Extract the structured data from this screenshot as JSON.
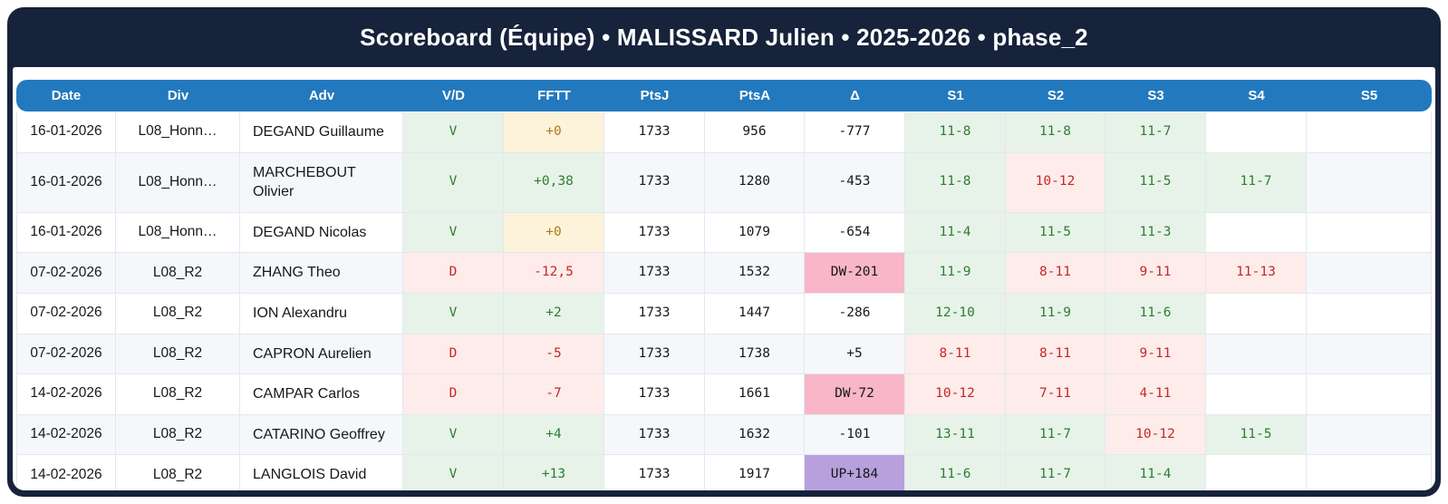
{
  "header": {
    "title": "Scoreboard (Équipe) • MALISSARD Julien • 2025-2026 • phase_2"
  },
  "colors": {
    "frame_navy": "#17223b",
    "table_header_blue": "#2379bd",
    "row_stripe": "#f5f7fb",
    "win_bg": "#e7f3e9",
    "win_text": "#2e7d32",
    "loss_bg": "#fdecea",
    "loss_text": "#c62828",
    "zero_bg": "#fdf2da",
    "zero_text": "#b07c10",
    "downgrade_bg": "#f9b6c8",
    "upgrade_bg": "#b8a0dc"
  },
  "table": {
    "columns": [
      {
        "key": "date",
        "label": "Date"
      },
      {
        "key": "div",
        "label": "Div"
      },
      {
        "key": "adv",
        "label": "Adv"
      },
      {
        "key": "vd",
        "label": "V/D"
      },
      {
        "key": "fftt",
        "label": "FFTT"
      },
      {
        "key": "ptsj",
        "label": "PtsJ"
      },
      {
        "key": "ptsa",
        "label": "PtsA"
      },
      {
        "key": "delta",
        "label": "Δ"
      },
      {
        "key": "s1",
        "label": "S1"
      },
      {
        "key": "s2",
        "label": "S2"
      },
      {
        "key": "s3",
        "label": "S3"
      },
      {
        "key": "s4",
        "label": "S4"
      },
      {
        "key": "s5",
        "label": "S5"
      }
    ],
    "rows": [
      {
        "date": "16-01-2026",
        "div": "L08_Honn…",
        "adv": "DEGAND Guillaume",
        "vd": "V",
        "fftt": {
          "text": "+0",
          "kind": "zero"
        },
        "ptsj": "1733",
        "ptsa": "956",
        "delta": {
          "text": "-777",
          "kind": "plain"
        },
        "sets": [
          {
            "text": "11-8",
            "kind": "win"
          },
          {
            "text": "11-8",
            "kind": "win"
          },
          {
            "text": "11-7",
            "kind": "win"
          },
          null,
          null
        ]
      },
      {
        "date": "16-01-2026",
        "div": "L08_Honn…",
        "adv": "MARCHEBOUT Olivier",
        "vd": "V",
        "fftt": {
          "text": "+0,38",
          "kind": "win"
        },
        "ptsj": "1733",
        "ptsa": "1280",
        "delta": {
          "text": "-453",
          "kind": "plain"
        },
        "sets": [
          {
            "text": "11-8",
            "kind": "win"
          },
          {
            "text": "10-12",
            "kind": "loss"
          },
          {
            "text": "11-5",
            "kind": "win"
          },
          {
            "text": "11-7",
            "kind": "win"
          },
          null
        ]
      },
      {
        "date": "16-01-2026",
        "div": "L08_Honn…",
        "adv": "DEGAND Nicolas",
        "vd": "V",
        "fftt": {
          "text": "+0",
          "kind": "zero"
        },
        "ptsj": "1733",
        "ptsa": "1079",
        "delta": {
          "text": "-654",
          "kind": "plain"
        },
        "sets": [
          {
            "text": "11-4",
            "kind": "win"
          },
          {
            "text": "11-5",
            "kind": "win"
          },
          {
            "text": "11-3",
            "kind": "win"
          },
          null,
          null
        ]
      },
      {
        "date": "07-02-2026",
        "div": "L08_R2",
        "adv": "ZHANG Theo",
        "vd": "D",
        "fftt": {
          "text": "-12,5",
          "kind": "loss"
        },
        "ptsj": "1733",
        "ptsa": "1532",
        "delta": {
          "text": "DW-201",
          "kind": "dw"
        },
        "sets": [
          {
            "text": "11-9",
            "kind": "win"
          },
          {
            "text": "8-11",
            "kind": "loss"
          },
          {
            "text": "9-11",
            "kind": "loss"
          },
          {
            "text": "11-13",
            "kind": "loss"
          },
          null
        ]
      },
      {
        "date": "07-02-2026",
        "div": "L08_R2",
        "adv": "ION Alexandru",
        "vd": "V",
        "fftt": {
          "text": "+2",
          "kind": "win"
        },
        "ptsj": "1733",
        "ptsa": "1447",
        "delta": {
          "text": "-286",
          "kind": "plain"
        },
        "sets": [
          {
            "text": "12-10",
            "kind": "win"
          },
          {
            "text": "11-9",
            "kind": "win"
          },
          {
            "text": "11-6",
            "kind": "win"
          },
          null,
          null
        ]
      },
      {
        "date": "07-02-2026",
        "div": "L08_R2",
        "adv": "CAPRON Aurelien",
        "vd": "D",
        "fftt": {
          "text": "-5",
          "kind": "loss"
        },
        "ptsj": "1733",
        "ptsa": "1738",
        "delta": {
          "text": "+5",
          "kind": "plain"
        },
        "sets": [
          {
            "text": "8-11",
            "kind": "loss"
          },
          {
            "text": "8-11",
            "kind": "loss"
          },
          {
            "text": "9-11",
            "kind": "loss"
          },
          null,
          null
        ]
      },
      {
        "date": "14-02-2026",
        "div": "L08_R2",
        "adv": "CAMPAR Carlos",
        "vd": "D",
        "fftt": {
          "text": "-7",
          "kind": "loss"
        },
        "ptsj": "1733",
        "ptsa": "1661",
        "delta": {
          "text": "DW-72",
          "kind": "dw"
        },
        "sets": [
          {
            "text": "10-12",
            "kind": "loss"
          },
          {
            "text": "7-11",
            "kind": "loss"
          },
          {
            "text": "4-11",
            "kind": "loss"
          },
          null,
          null
        ]
      },
      {
        "date": "14-02-2026",
        "div": "L08_R2",
        "adv": "CATARINO Geoffrey",
        "vd": "V",
        "fftt": {
          "text": "+4",
          "kind": "win"
        },
        "ptsj": "1733",
        "ptsa": "1632",
        "delta": {
          "text": "-101",
          "kind": "plain"
        },
        "sets": [
          {
            "text": "13-11",
            "kind": "win"
          },
          {
            "text": "11-7",
            "kind": "win"
          },
          {
            "text": "10-12",
            "kind": "loss"
          },
          {
            "text": "11-5",
            "kind": "win"
          },
          null
        ]
      },
      {
        "date": "14-02-2026",
        "div": "L08_R2",
        "adv": "LANGLOIS David",
        "vd": "V",
        "fftt": {
          "text": "+13",
          "kind": "win"
        },
        "ptsj": "1733",
        "ptsa": "1917",
        "delta": {
          "text": "UP+184",
          "kind": "up"
        },
        "sets": [
          {
            "text": "11-6",
            "kind": "win"
          },
          {
            "text": "11-7",
            "kind": "win"
          },
          {
            "text": "11-4",
            "kind": "win"
          },
          null,
          null
        ]
      }
    ]
  }
}
